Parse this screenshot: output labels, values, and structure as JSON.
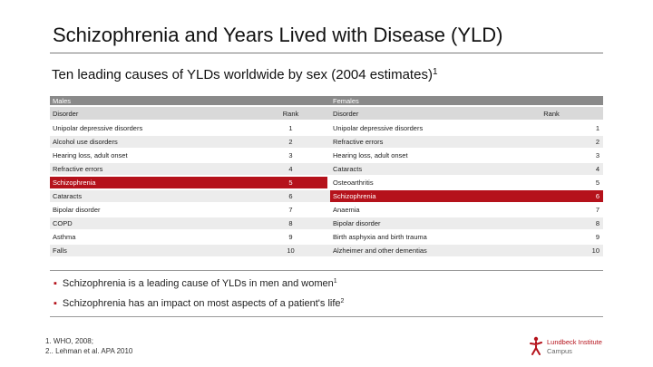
{
  "title": "Schizophrenia and Years Lived with Disease (YLD)",
  "subtitle": {
    "text": "Ten leading causes of YLDs worldwide by sex (2004 estimates)",
    "superscript": "1"
  },
  "table": {
    "group_males": "Males",
    "group_females": "Females",
    "headers": {
      "male_disorder": "Disorder",
      "male_rank": "Rank",
      "female_disorder": "Disorder",
      "female_rank": "Rank"
    },
    "rows": [
      {
        "male": "Unipolar depressive disorders",
        "male_rank": "1",
        "female": "Unipolar depressive disorders",
        "female_rank": "1",
        "male_highlight": false,
        "female_highlight": false
      },
      {
        "male": "Alcohol use disorders",
        "male_rank": "2",
        "female": "Refractive errors",
        "female_rank": "2",
        "male_highlight": false,
        "female_highlight": false
      },
      {
        "male": "Hearing loss, adult onset",
        "male_rank": "3",
        "female": "Hearing loss, adult onset",
        "female_rank": "3",
        "male_highlight": false,
        "female_highlight": false
      },
      {
        "male": "Refractive errors",
        "male_rank": "4",
        "female": "Cataracts",
        "female_rank": "4",
        "male_highlight": false,
        "female_highlight": false
      },
      {
        "male": "Schizophrenia",
        "male_rank": "5",
        "female": "Osteoarthritis",
        "female_rank": "5",
        "male_highlight": true,
        "female_highlight": false
      },
      {
        "male": "Cataracts",
        "male_rank": "6",
        "female": "Schizophrenia",
        "female_rank": "6",
        "male_highlight": false,
        "female_highlight": true
      },
      {
        "male": "Bipolar disorder",
        "male_rank": "7",
        "female": "Anaemia",
        "female_rank": "7",
        "male_highlight": false,
        "female_highlight": false
      },
      {
        "male": "COPD",
        "male_rank": "8",
        "female": "Bipolar disorder",
        "female_rank": "8",
        "male_highlight": false,
        "female_highlight": false
      },
      {
        "male": "Asthma",
        "male_rank": "9",
        "female": "Birth asphyxia and birth trauma",
        "female_rank": "9",
        "male_highlight": false,
        "female_highlight": false
      },
      {
        "male": "Falls",
        "male_rank": "10",
        "female": "Alzheimer and other dementias",
        "female_rank": "10",
        "male_highlight": false,
        "female_highlight": false
      }
    ]
  },
  "bullets": [
    {
      "text": "Schizophrenia is a leading cause of YLDs in men and women",
      "sup": "1"
    },
    {
      "text": "Schizophrenia has an impact on most aspects of a patient's life",
      "sup": "2"
    }
  ],
  "references": [
    "1.  WHO, 2008;",
    "2.. Lehman et al. APA 2010"
  ],
  "logo": {
    "line1": "Lundbeck Institute",
    "line2": "Campus"
  },
  "colors": {
    "accent": "#b5121b",
    "group_header": "#8a8a8a",
    "column_header": "#d9d9d9",
    "alt_row": "#ececec"
  }
}
